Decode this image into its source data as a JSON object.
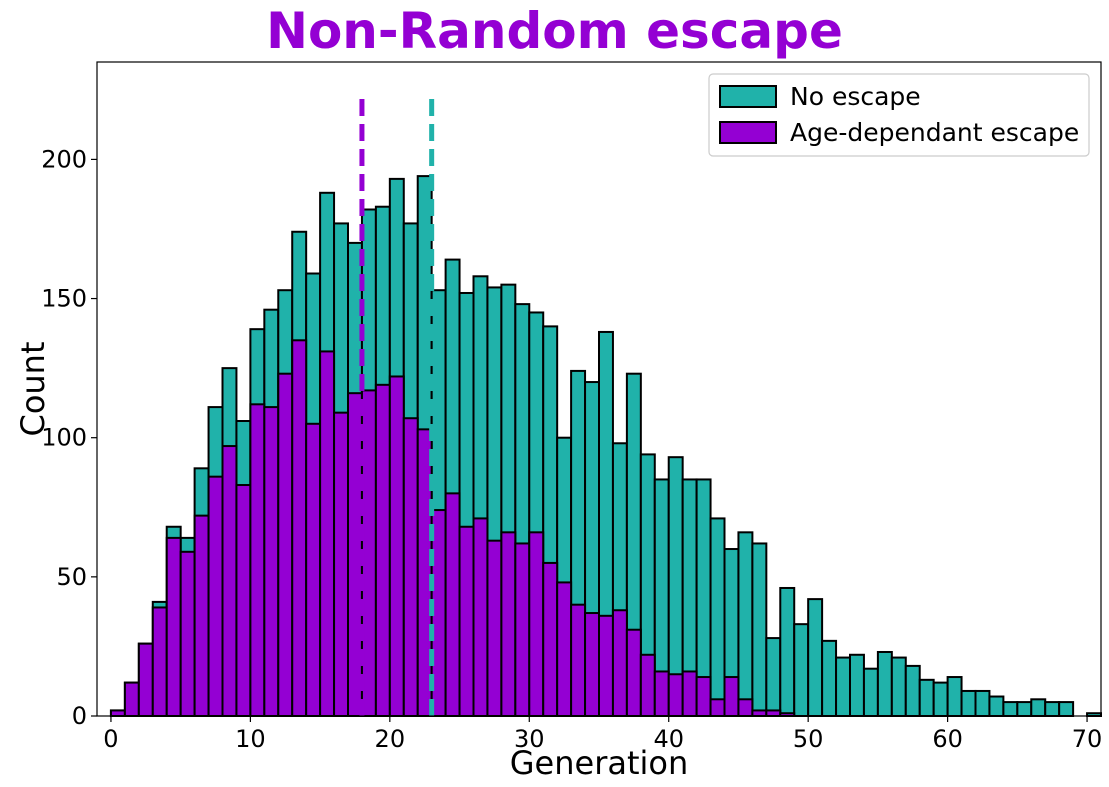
{
  "chart_data": {
    "type": "bar",
    "title": "Non-Random escape",
    "xlabel": "Generation",
    "ylabel": "Count",
    "xlim": [
      -1,
      71
    ],
    "ylim": [
      0,
      235
    ],
    "xticks": [
      0,
      10,
      20,
      30,
      40,
      50,
      60,
      70
    ],
    "yticks": [
      0,
      50,
      100,
      150,
      200
    ],
    "legend_position": "top-right",
    "bin_start": 0,
    "bin_width": 1,
    "series": [
      {
        "name": "No escape",
        "color": "#20b2aa",
        "values": [
          2,
          12,
          26,
          41,
          68,
          64,
          89,
          111,
          125,
          106,
          139,
          146,
          153,
          174,
          159,
          188,
          177,
          170,
          182,
          183,
          193,
          177,
          194,
          153,
          164,
          152,
          158,
          154,
          155,
          148,
          145,
          140,
          100,
          124,
          120,
          138,
          98,
          123,
          94,
          85,
          93,
          85,
          85,
          71,
          60,
          66,
          62,
          28,
          46,
          33,
          42,
          27,
          21,
          22,
          17,
          23,
          21,
          18,
          13,
          12,
          14,
          9,
          9,
          7,
          5,
          5,
          6,
          5,
          5,
          0,
          1
        ],
        "median_line": 23
      },
      {
        "name": "Age-dependant escape",
        "color": "#9400d3",
        "values": [
          2,
          12,
          26,
          39,
          64,
          59,
          72,
          86,
          97,
          83,
          112,
          111,
          123,
          135,
          105,
          131,
          109,
          116,
          117,
          119,
          122,
          107,
          103,
          74,
          80,
          68,
          71,
          63,
          66,
          62,
          66,
          55,
          48,
          40,
          37,
          36,
          38,
          31,
          22,
          16,
          15,
          16,
          14,
          6,
          14,
          6,
          2,
          2,
          1,
          0,
          0,
          0,
          0,
          0,
          0,
          0,
          0,
          0,
          0,
          0,
          0,
          0,
          0,
          0,
          0,
          0,
          0,
          0,
          0,
          0,
          0
        ],
        "median_line": 18
      }
    ]
  }
}
